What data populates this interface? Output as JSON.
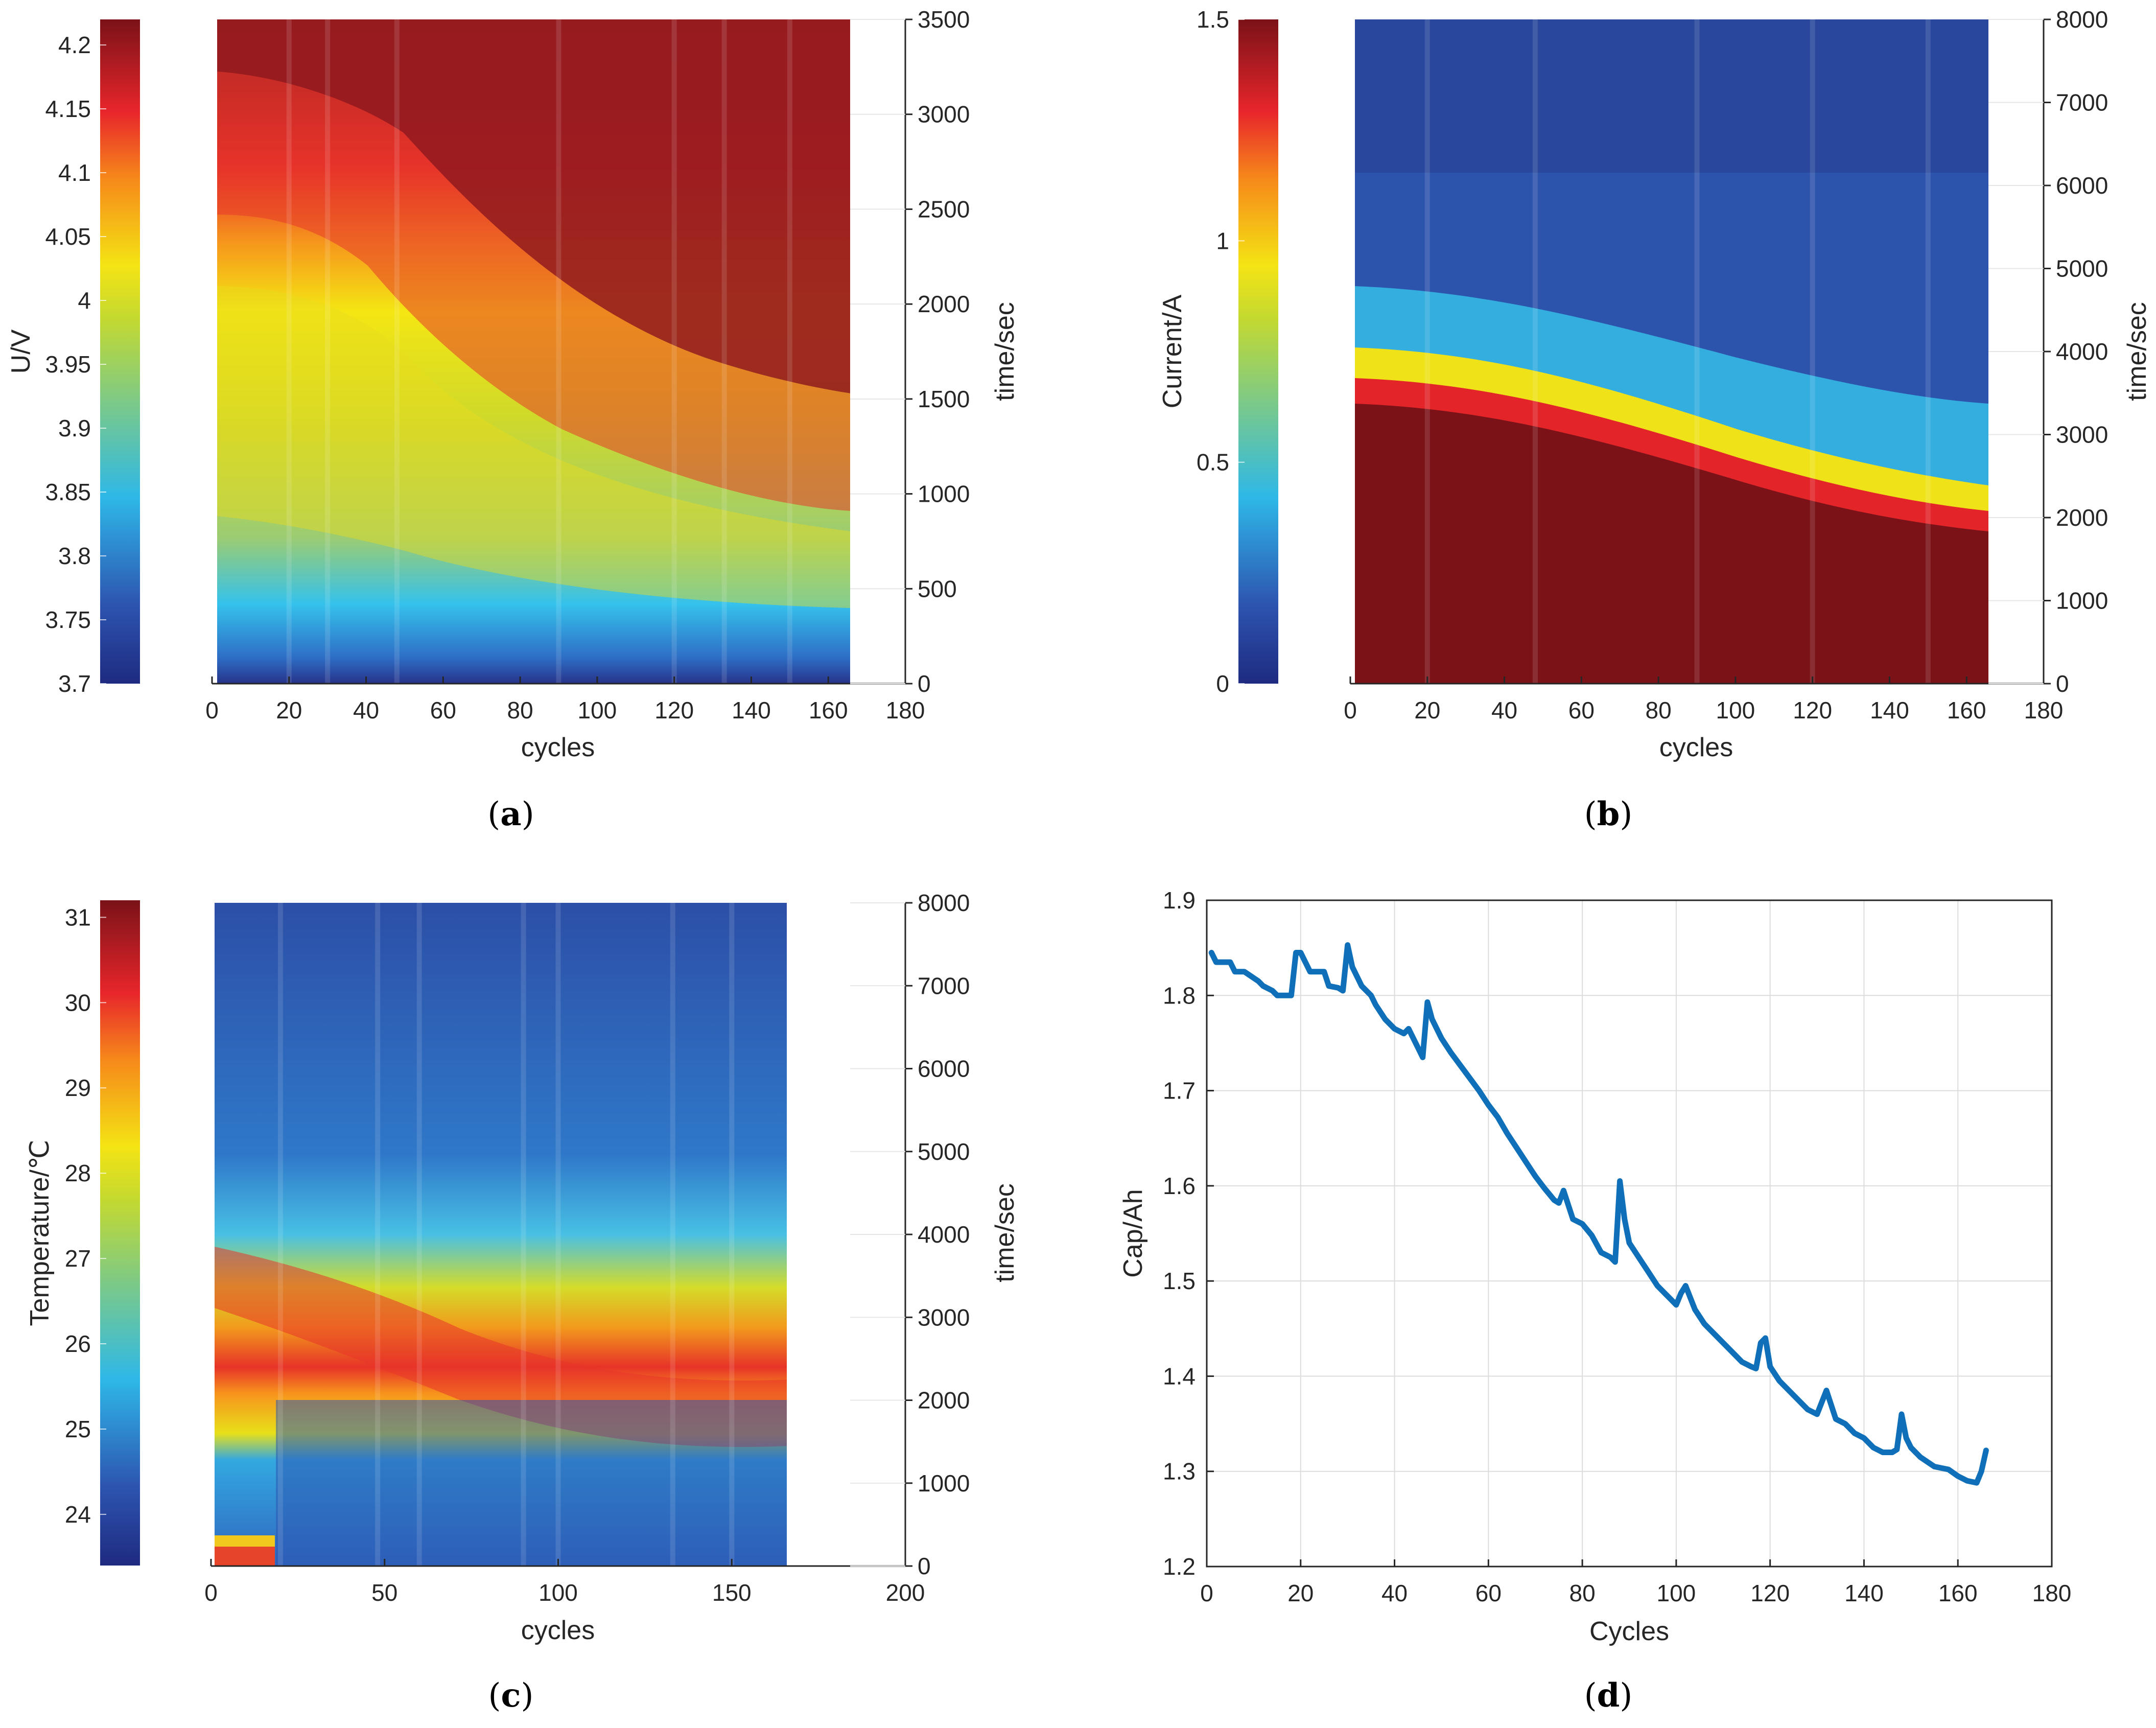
{
  "figure": {
    "panels": {
      "a": {
        "caption_letter": "a"
      },
      "b": {
        "caption_letter": "b"
      },
      "c": {
        "caption_letter": "c"
      },
      "d": {
        "caption_letter": "d"
      }
    }
  },
  "colors": {
    "axis": "#262626",
    "grid": "#dcdcdc",
    "line": "#0f6fb8"
  },
  "chart_data": [
    {
      "id": "a",
      "type": "heatmap",
      "xlabel": "cycles",
      "ylabel_right": "time/sec",
      "colorbar_label": "U/V",
      "xlim": [
        0,
        180
      ],
      "xticks": [
        0,
        20,
        40,
        60,
        80,
        100,
        120,
        140,
        160,
        180
      ],
      "ylim": [
        0,
        3500
      ],
      "yticks": [
        0,
        500,
        1000,
        1500,
        2000,
        2500,
        3000,
        3500
      ],
      "clim": [
        3.7,
        4.22
      ],
      "cticks": [
        3.7,
        3.75,
        3.8,
        3.85,
        3.9,
        3.95,
        4,
        4.05,
        4.1,
        4.15,
        4.2
      ],
      "cticklabels": [
        "3.7",
        "3.75",
        "3.8",
        "3.85",
        "3.9",
        "3.95",
        "4",
        "4.05",
        "4.1",
        "4.15",
        "4.2"
      ],
      "data_xrange": [
        1,
        166
      ],
      "ridges": [
        20,
        30,
        48,
        90,
        120,
        133,
        150
      ],
      "colormap": "jet"
    },
    {
      "id": "b",
      "type": "heatmap",
      "xlabel": "cycles",
      "ylabel_right": "time/sec",
      "colorbar_label": "Current/A",
      "xlim": [
        0,
        180
      ],
      "xticks": [
        0,
        20,
        40,
        60,
        80,
        100,
        120,
        140,
        160,
        180
      ],
      "ylim": [
        0,
        8000
      ],
      "yticks": [
        0,
        1000,
        2000,
        3000,
        4000,
        5000,
        6000,
        7000,
        8000
      ],
      "clim": [
        0,
        1.5
      ],
      "cticks": [
        0,
        0.5,
        1,
        1.5
      ],
      "cticklabels": [
        "0",
        "0.5",
        "1",
        "1.5"
      ],
      "data_xrange": [
        1,
        166
      ],
      "ridges": [
        20,
        48,
        90,
        120,
        150
      ],
      "colormap": "jet"
    },
    {
      "id": "c",
      "type": "heatmap",
      "xlabel": "cycles",
      "ylabel_right": "time/sec",
      "colorbar_label": "Temperature/℃",
      "xlim": [
        0,
        200
      ],
      "xticks": [
        0,
        50,
        100,
        150,
        200
      ],
      "ylim": [
        0,
        8000
      ],
      "yticks": [
        0,
        1000,
        2000,
        3000,
        4000,
        5000,
        6000,
        7000,
        8000
      ],
      "clim": [
        23.4,
        31.2
      ],
      "cticks": [
        24,
        25,
        26,
        27,
        28,
        29,
        30,
        31
      ],
      "cticklabels": [
        "24",
        "25",
        "26",
        "27",
        "28",
        "29",
        "30",
        "31"
      ],
      "data_xrange": [
        1,
        166
      ],
      "ridges": [
        20,
        48,
        60,
        90,
        100,
        133,
        150
      ],
      "colormap": "jet"
    },
    {
      "id": "d",
      "type": "line",
      "xlabel": "Cycles",
      "ylabel": "Cap/Ah",
      "xlim": [
        0,
        180
      ],
      "xticks": [
        0,
        20,
        40,
        60,
        80,
        100,
        120,
        140,
        160,
        180
      ],
      "ylim": [
        1.2,
        1.9
      ],
      "yticks": [
        1.2,
        1.3,
        1.4,
        1.5,
        1.6,
        1.7,
        1.8,
        1.9
      ],
      "yticklabels": [
        "1.2",
        "1.3",
        "1.4",
        "1.5",
        "1.6",
        "1.7",
        "1.8",
        "1.9"
      ],
      "grid": true,
      "series": [
        {
          "name": "capacity",
          "x": [
            1,
            2,
            5,
            6,
            8,
            11,
            12,
            14,
            15,
            18,
            19,
            20,
            22,
            25,
            26,
            28,
            29,
            30,
            31,
            33,
            35,
            36,
            38,
            40,
            42,
            43,
            45,
            46,
            47,
            48,
            50,
            52,
            55,
            58,
            60,
            62,
            64,
            66,
            68,
            70,
            72,
            74,
            75,
            76,
            78,
            80,
            82,
            84,
            86,
            87,
            88,
            89,
            90,
            92,
            94,
            96,
            98,
            100,
            101,
            102,
            104,
            106,
            108,
            110,
            112,
            114,
            116,
            117,
            118,
            119,
            120,
            122,
            125,
            128,
            130,
            132,
            134,
            136,
            138,
            140,
            142,
            144,
            146,
            147,
            148,
            149,
            150,
            152,
            155,
            158,
            160,
            162,
            164,
            165,
            166
          ],
          "values": [
            1.845,
            1.835,
            1.835,
            1.825,
            1.825,
            1.815,
            1.81,
            1.805,
            1.8,
            1.8,
            1.845,
            1.845,
            1.825,
            1.825,
            1.81,
            1.808,
            1.805,
            1.853,
            1.83,
            1.81,
            1.8,
            1.79,
            1.775,
            1.765,
            1.76,
            1.765,
            1.745,
            1.735,
            1.793,
            1.775,
            1.755,
            1.74,
            1.72,
            1.7,
            1.685,
            1.672,
            1.655,
            1.64,
            1.625,
            1.61,
            1.597,
            1.585,
            1.582,
            1.595,
            1.565,
            1.56,
            1.548,
            1.53,
            1.525,
            1.52,
            1.605,
            1.565,
            1.54,
            1.525,
            1.51,
            1.495,
            1.485,
            1.475,
            1.487,
            1.495,
            1.47,
            1.455,
            1.445,
            1.435,
            1.425,
            1.415,
            1.41,
            1.408,
            1.435,
            1.44,
            1.41,
            1.395,
            1.38,
            1.365,
            1.36,
            1.385,
            1.355,
            1.35,
            1.34,
            1.335,
            1.325,
            1.32,
            1.32,
            1.323,
            1.36,
            1.335,
            1.325,
            1.315,
            1.305,
            1.302,
            1.295,
            1.29,
            1.288,
            1.3,
            1.322
          ]
        }
      ]
    }
  ]
}
